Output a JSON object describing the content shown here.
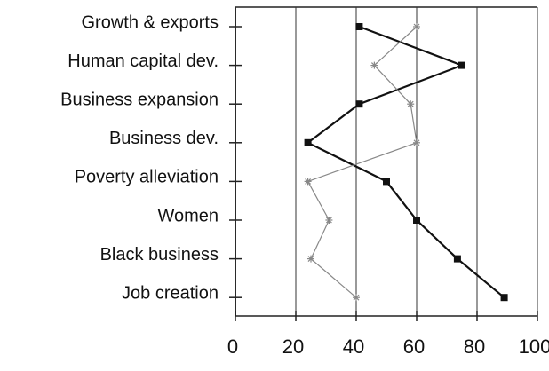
{
  "chart_data": {
    "type": "line",
    "orientation": "horizontal",
    "categories": [
      "Growth & exports",
      "Human capital dev.",
      "Business expansion",
      "Business dev.",
      "Poverty alleviation",
      "Women",
      "Black business",
      "Job creation"
    ],
    "series": [
      {
        "color": "#111111",
        "marker": "square",
        "values": [
          41,
          75,
          41,
          24,
          50,
          60,
          73.5,
          89
        ]
      },
      {
        "color": "#888888",
        "marker": "star",
        "values": [
          60,
          46,
          58,
          60,
          24,
          31,
          25,
          40
        ]
      }
    ],
    "xlim": [
      0,
      100
    ],
    "xticks": [
      0,
      20,
      40,
      60,
      80,
      100
    ],
    "grid": true
  }
}
